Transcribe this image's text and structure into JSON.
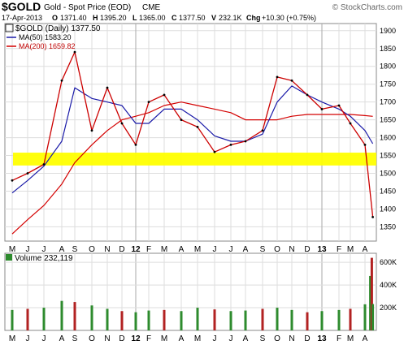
{
  "header": {
    "symbol": "$GOLD",
    "name": "Gold - Spot Price (EOD)",
    "exchange": "CME",
    "logo_text": "© StockCharts.com"
  },
  "quote": {
    "date": "17-Apr-2013",
    "open_label": "O",
    "open": "1371.40",
    "high_label": "H",
    "high": "1395.20",
    "low_label": "L",
    "low": "1365.00",
    "close_label": "C",
    "close": "1377.50",
    "volume_label": "V",
    "volume": "232.1K",
    "change_label": "Chg",
    "change": "+10.30 (+0.75%)"
  },
  "legend": {
    "price": "$GOLD (Daily) 1377.50",
    "ma50": "MA(50) 1583.20",
    "ma200": "MA(200) 1659.82",
    "volume": "Volume 232,119"
  },
  "colors": {
    "price_up": "#000000",
    "price_down": "#cc0000",
    "ma50": "#1a1aa8",
    "ma200": "#d40000",
    "highlight_band": "#ffff00",
    "volume_up": "#2e8b2e",
    "volume_down": "#b22222",
    "grid": "#dddddd"
  },
  "chart_data": [
    {
      "type": "line",
      "title": "$GOLD (Daily) 1377.50",
      "xlabel": "",
      "ylabel": "",
      "x_ticks": [
        "M",
        "J",
        "J",
        "A",
        "S",
        "O",
        "N",
        "D",
        "12",
        "F",
        "M",
        "A",
        "M",
        "J",
        "J",
        "A",
        "S",
        "O",
        "N",
        "D",
        "13",
        "F",
        "M",
        "A"
      ],
      "y_ticks": [
        1350,
        1400,
        1450,
        1500,
        1550,
        1600,
        1650,
        1700,
        1750,
        1800,
        1850,
        1900
      ],
      "ylim": [
        1310,
        1920
      ],
      "grid": true,
      "highlight_band": [
        1522,
        1558
      ],
      "x": [
        "2011-05",
        "2011-06",
        "2011-07",
        "2011-08",
        "2011-09",
        "2011-10",
        "2011-11",
        "2011-12",
        "2012-01",
        "2012-02",
        "2012-03",
        "2012-04",
        "2012-05",
        "2012-06",
        "2012-07",
        "2012-08",
        "2012-09",
        "2012-10",
        "2012-11",
        "2012-12",
        "2013-01",
        "2013-02",
        "2013-03",
        "2013-04",
        "2013-04-17"
      ],
      "series": [
        {
          "name": "$GOLD",
          "values": [
            1480,
            1500,
            1525,
            1760,
            1840,
            1620,
            1740,
            1640,
            1580,
            1700,
            1720,
            1650,
            1630,
            1560,
            1580,
            1590,
            1620,
            1770,
            1760,
            1720,
            1680,
            1690,
            1640,
            1580,
            1377.5
          ]
        },
        {
          "name": "MA(50)",
          "values": [
            1445,
            1480,
            1520,
            1590,
            1740,
            1710,
            1700,
            1690,
            1640,
            1640,
            1680,
            1680,
            1650,
            1605,
            1590,
            1590,
            1610,
            1700,
            1745,
            1720,
            1700,
            1680,
            1660,
            1620,
            1583.2
          ]
        },
        {
          "name": "MA(200)",
          "values": [
            1330,
            1370,
            1410,
            1470,
            1530,
            1580,
            1620,
            1650,
            1660,
            1670,
            1690,
            1700,
            1690,
            1680,
            1670,
            1650,
            1650,
            1650,
            1660,
            1665,
            1665,
            1665,
            1665,
            1662,
            1659.82
          ]
        }
      ]
    },
    {
      "type": "bar",
      "title": "Volume 232,119",
      "y_ticks": [
        "200K",
        "400K",
        "600K"
      ],
      "y_tick_values": [
        200000,
        400000,
        600000
      ],
      "ylim": [
        0,
        680000
      ],
      "x": [
        "2011-05",
        "2011-06",
        "2011-07",
        "2011-08",
        "2011-09",
        "2011-10",
        "2011-11",
        "2011-12",
        "2012-01",
        "2012-02",
        "2012-03",
        "2012-04",
        "2012-05",
        "2012-06",
        "2012-07",
        "2012-08",
        "2012-09",
        "2012-10",
        "2012-11",
        "2012-12",
        "2013-01",
        "2013-02",
        "2013-03",
        "2013-04",
        "2013-04-12",
        "2013-04-15",
        "2013-04-17"
      ],
      "values": [
        180000,
        190000,
        200000,
        260000,
        250000,
        220000,
        190000,
        170000,
        160000,
        175000,
        180000,
        170000,
        200000,
        185000,
        170000,
        175000,
        190000,
        200000,
        180000,
        160000,
        170000,
        180000,
        190000,
        230000,
        480000,
        640000,
        232119
      ]
    }
  ]
}
